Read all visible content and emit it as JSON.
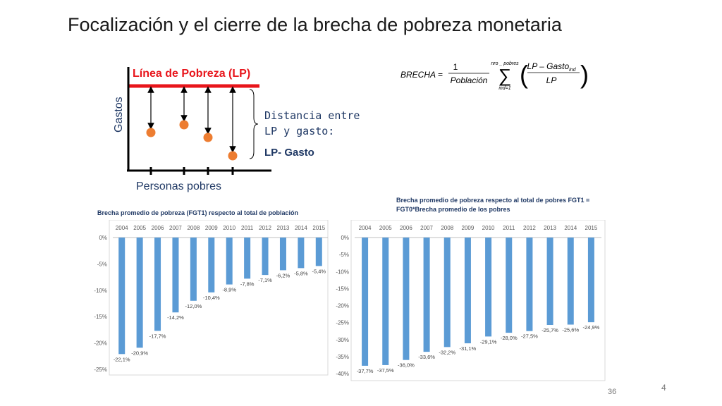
{
  "slide": {
    "title": "Focalización y el cierre de la brecha de pobreza monetaria",
    "slide_number": "4",
    "page_number": "36"
  },
  "diagram": {
    "lp_label": "Línea de Pobreza (LP)",
    "y_label": "Gastos",
    "x_label": "Personas pobres",
    "distance_line1": "Distancia entre",
    "distance_line2": "LP y gasto:",
    "lp_minus": "LP- Gasto",
    "colors": {
      "lp_line": "#e8151b",
      "dot": "#ed7d31",
      "axis": "#000000"
    }
  },
  "formula": {
    "lhs": "BRECHA",
    "frac_num": "1",
    "frac_den": "Población",
    "sum_upper": "nro _ pobres",
    "sum_lower": "ind=1",
    "inner_num": "LP – Gasto",
    "inner_num_sub": "ind",
    "inner_den": "LP"
  },
  "chart_data": [
    {
      "type": "bar",
      "title": "Brecha promedio de pobreza (FGT1) respecto al total de población",
      "categories": [
        "2004",
        "2005",
        "2006",
        "2007",
        "2008",
        "2009",
        "2010",
        "2011",
        "2012",
        "2013",
        "2014",
        "2015"
      ],
      "values": [
        -22.1,
        -20.9,
        -17.7,
        -14.2,
        -12.0,
        -10.4,
        -8.9,
        -7.8,
        -7.1,
        -6.2,
        -5.8,
        -5.4
      ],
      "data_labels": [
        "-22,1%",
        "-20,9%",
        "-17,7%",
        "-14,2%",
        "-12,0%",
        "-10,4%",
        "-8,9%",
        "-7,8%",
        "-7,1%",
        "-6,2%",
        "-5,8%",
        "-5,4%"
      ],
      "ylim": [
        -25,
        0
      ],
      "y_ticks": [
        "0%",
        "-5%",
        "-10%",
        "-15%",
        "-20%",
        "-25%"
      ],
      "x_axis_position": "top",
      "grid": false,
      "color": "#5b9bd5"
    },
    {
      "type": "bar",
      "title_line1": "Brecha promedio de pobreza respecto al total de pobres FGT1 =",
      "title_line2": "FGT0*Brecha promedio de los pobres",
      "categories": [
        "2004",
        "2005",
        "2006",
        "2007",
        "2008",
        "2009",
        "2010",
        "2011",
        "2012",
        "2013",
        "2014",
        "2015"
      ],
      "values": [
        -37.7,
        -37.5,
        -36.0,
        -33.6,
        -32.2,
        -31.1,
        -29.1,
        -28.0,
        -27.5,
        -25.7,
        -25.6,
        -24.9
      ],
      "data_labels": [
        "-37,7%",
        "-37,5%",
        "-36,0%",
        "-33,6%",
        "-32,2%",
        "-31,1%",
        "-29,1%",
        "-28,0%",
        "-27,5%",
        "-25,7%",
        "-25,6%",
        "-24,9%"
      ],
      "ylim": [
        -40,
        0
      ],
      "y_ticks": [
        "0%",
        "-5%",
        "-10%",
        "-15%",
        "-20%",
        "-25%",
        "-30%",
        "-35%",
        "-40%"
      ],
      "x_axis_position": "top",
      "grid": false,
      "color": "#5b9bd5"
    }
  ]
}
